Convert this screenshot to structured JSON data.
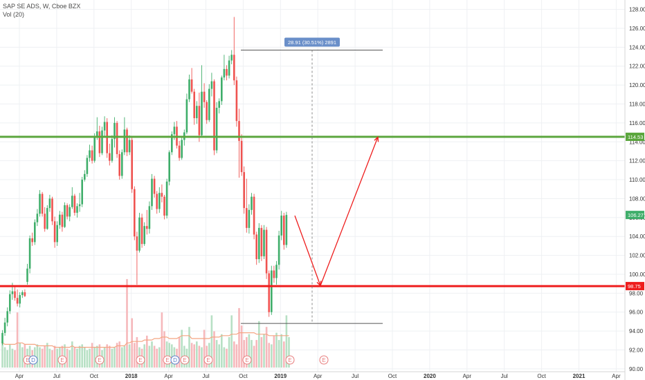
{
  "header": {
    "symbol_line": "SAP SE ADS, W, Cboe BZX",
    "volume_line": "Vol (20)"
  },
  "colors": {
    "up": "#3fae6a",
    "down": "#ef5350",
    "volume_up": "#b7e0c4",
    "volume_down": "#f6b8bb",
    "volume_ma": "#f4a582",
    "resistance_line": "#5ba63d",
    "support_line": "#ee1c1c",
    "projection_arrow": "#ee1c1c",
    "measure_box": "#6a8fc9",
    "event_ring": "#e77b7b",
    "dividend_ring": "#5a7dc9"
  },
  "chart_data": {
    "type": "candlestick",
    "title": "SAP SE ADS, W, Cboe BZX",
    "ylim": [
      89.7,
      128.7
    ],
    "y_ticks": [
      "90.00",
      "92.00",
      "94.00",
      "96.00",
      "98.00",
      "100.00",
      "102.00",
      "104.00",
      "106.00",
      "108.00",
      "110.00",
      "112.00",
      "114.00",
      "116.00",
      "118.00",
      "120.00",
      "122.00",
      "124.00",
      "126.00",
      "128.00"
    ],
    "x_ticks": [
      "Apr",
      "Jul",
      "Oct",
      "2018",
      "Apr",
      "Jul",
      "Oct",
      "2019",
      "Apr",
      "Jul",
      "Oct",
      "2020",
      "Apr",
      "Jul",
      "Oct",
      "2021",
      "Apr"
    ],
    "price_labels": {
      "resistance": "114.53",
      "current": "106.27",
      "support": "98.75"
    },
    "levels": {
      "resistance": 114.53,
      "support": 98.75,
      "current": 106.27
    },
    "measure": {
      "label": "28.91 (30.51%) 2891",
      "from": 94.8,
      "to": 123.7
    },
    "projection": [
      {
        "t": 0,
        "price": 106.2
      },
      {
        "t": 1,
        "price": 98.8
      },
      {
        "t": 2,
        "price": 114.5
      }
    ],
    "ohlc": [
      [
        92.7,
        94.1,
        92.5,
        93.8
      ],
      [
        93.8,
        95.4,
        93.5,
        94.9
      ],
      [
        94.9,
        96.5,
        94.5,
        96.1
      ],
      [
        96.1,
        98.3,
        95.8,
        97.9
      ],
      [
        97.9,
        99.1,
        97.3,
        98.2
      ],
      [
        98.2,
        98.8,
        97.2,
        97.5
      ],
      [
        97.5,
        98.4,
        96.6,
        96.9
      ],
      [
        96.9,
        98.1,
        96.5,
        97.8
      ],
      [
        97.8,
        98.3,
        97.5,
        98.1
      ],
      [
        98.1,
        98.4,
        97.6,
        97.7
      ],
      [
        99.2,
        101.1,
        98.9,
        100.6
      ],
      [
        100.6,
        104.1,
        100.1,
        103.8
      ],
      [
        103.8,
        104.4,
        103.0,
        103.4
      ],
      [
        103.4,
        105.8,
        103.1,
        105.5
      ],
      [
        105.5,
        106.9,
        105.1,
        106.4
      ],
      [
        106.4,
        108.9,
        106.1,
        108.5
      ],
      [
        108.5,
        108.7,
        106.1,
        106.4
      ],
      [
        106.4,
        107.1,
        104.5,
        104.8
      ],
      [
        104.8,
        107.3,
        104.7,
        107.0
      ],
      [
        107.0,
        108.4,
        106.6,
        108.0
      ],
      [
        108.0,
        108.2,
        105.2,
        105.6
      ],
      [
        105.6,
        106.1,
        102.8,
        103.4
      ],
      [
        103.4,
        105.6,
        103.0,
        105.2
      ],
      [
        105.2,
        106.7,
        104.8,
        106.3
      ],
      [
        106.3,
        106.6,
        104.5,
        105.0
      ],
      [
        105.0,
        107.6,
        104.9,
        107.3
      ],
      [
        107.3,
        107.5,
        105.8,
        106.1
      ],
      [
        106.1,
        107.4,
        105.6,
        107.1
      ],
      [
        107.1,
        109.2,
        106.9,
        108.3
      ],
      [
        108.3,
        108.5,
        106.2,
        106.5
      ],
      [
        106.5,
        107.5,
        106.0,
        107.2
      ],
      [
        107.2,
        108.6,
        106.6,
        107.4
      ],
      [
        107.4,
        110.3,
        107.1,
        110.0
      ],
      [
        110.0,
        111.0,
        109.8,
        110.6
      ],
      [
        110.6,
        112.6,
        110.3,
        112.3
      ],
      [
        112.3,
        113.7,
        111.9,
        113.1
      ],
      [
        113.1,
        113.6,
        111.7,
        112.0
      ],
      [
        112.0,
        114.9,
        111.8,
        114.5
      ],
      [
        114.5,
        116.6,
        114.2,
        115.1
      ],
      [
        115.1,
        115.7,
        112.4,
        112.8
      ],
      [
        112.8,
        115.6,
        112.6,
        115.2
      ],
      [
        115.2,
        116.7,
        114.5,
        116.1
      ],
      [
        116.1,
        116.5,
        112.3,
        112.8
      ],
      [
        112.8,
        113.8,
        111.5,
        112.0
      ],
      [
        112.0,
        114.7,
        111.8,
        114.3
      ],
      [
        114.3,
        116.6,
        113.4,
        116.0
      ],
      [
        116.0,
        116.2,
        112.3,
        112.7
      ],
      [
        112.7,
        113.1,
        110.0,
        110.4
      ],
      [
        110.4,
        113.2,
        110.1,
        112.9
      ],
      [
        112.9,
        116.6,
        112.6,
        115.3
      ],
      [
        115.3,
        115.5,
        112.5,
        112.9
      ],
      [
        112.9,
        114.7,
        112.6,
        114.2
      ],
      [
        114.2,
        114.5,
        108.6,
        109.0
      ],
      [
        109.0,
        109.3,
        103.6,
        104.0
      ],
      [
        104.0,
        104.5,
        98.9,
        102.5
      ],
      [
        102.5,
        106.5,
        102.3,
        106.0
      ],
      [
        106.0,
        106.4,
        102.8,
        103.2
      ],
      [
        103.2,
        105.5,
        103.0,
        105.1
      ],
      [
        105.1,
        106.8,
        104.2,
        104.8
      ],
      [
        104.8,
        107.7,
        104.3,
        107.2
      ],
      [
        107.2,
        110.6,
        106.8,
        110.1
      ],
      [
        110.1,
        110.4,
        108.1,
        108.5
      ],
      [
        108.5,
        108.8,
        106.4,
        106.9
      ],
      [
        106.9,
        109.2,
        106.5,
        108.6
      ],
      [
        108.6,
        109.5,
        107.6,
        108.2
      ],
      [
        108.2,
        108.4,
        105.8,
        106.2
      ],
      [
        106.2,
        110.1,
        105.9,
        109.8
      ],
      [
        109.8,
        113.1,
        109.4,
        112.9
      ],
      [
        112.9,
        115.1,
        112.6,
        114.8
      ],
      [
        114.8,
        116.1,
        114.2,
        115.6
      ],
      [
        115.6,
        116.2,
        113.3,
        113.6
      ],
      [
        113.6,
        114.1,
        112.0,
        112.3
      ],
      [
        112.3,
        114.6,
        112.1,
        114.2
      ],
      [
        114.2,
        115.3,
        113.6,
        115.0
      ],
      [
        115.0,
        119.1,
        114.8,
        118.5
      ],
      [
        118.5,
        121.1,
        118.2,
        120.6
      ],
      [
        120.6,
        121.8,
        119.1,
        119.3
      ],
      [
        119.3,
        119.6,
        115.8,
        116.5
      ],
      [
        116.5,
        118.3,
        115.9,
        117.8
      ],
      [
        117.8,
        119.2,
        114.0,
        114.7
      ],
      [
        114.7,
        122.1,
        114.5,
        119.3
      ],
      [
        119.3,
        120.2,
        117.6,
        118.2
      ],
      [
        118.2,
        118.4,
        115.9,
        116.3
      ],
      [
        116.3,
        120.1,
        116.1,
        119.6
      ],
      [
        119.6,
        121.3,
        118.8,
        120.4
      ],
      [
        120.4,
        120.6,
        112.6,
        113.1
      ],
      [
        113.1,
        118.2,
        112.8,
        117.6
      ],
      [
        117.6,
        118.6,
        117.0,
        118.3
      ],
      [
        118.3,
        121.0,
        117.9,
        120.8
      ],
      [
        120.8,
        123.2,
        120.5,
        121.7
      ],
      [
        121.7,
        122.1,
        120.5,
        121.0
      ],
      [
        121.0,
        123.1,
        120.7,
        122.6
      ],
      [
        122.6,
        123.7,
        122.2,
        123.2
      ],
      [
        123.2,
        127.2,
        120.0,
        120.5
      ],
      [
        120.5,
        120.9,
        115.6,
        116.2
      ],
      [
        116.2,
        117.5,
        110.2,
        114.1
      ],
      [
        114.1,
        114.8,
        110.4,
        110.8
      ],
      [
        110.8,
        111.4,
        106.4,
        107.0
      ],
      [
        107.0,
        110.1,
        104.4,
        104.9
      ],
      [
        104.9,
        107.4,
        104.3,
        106.8
      ],
      [
        106.8,
        108.6,
        106.3,
        108.2
      ],
      [
        108.2,
        108.5,
        103.7,
        104.2
      ],
      [
        104.2,
        104.5,
        101.0,
        101.6
      ],
      [
        101.6,
        105.4,
        101.2,
        104.9
      ],
      [
        104.9,
        105.2,
        101.4,
        101.9
      ],
      [
        101.9,
        105.2,
        101.6,
        104.7
      ],
      [
        104.7,
        105.0,
        99.5,
        100.1
      ],
      [
        100.1,
        100.4,
        95.5,
        96.0
      ],
      [
        96.0,
        100.9,
        95.7,
        100.4
      ],
      [
        100.4,
        100.9,
        99.1,
        99.6
      ],
      [
        99.6,
        101.4,
        98.9,
        101.0
      ],
      [
        101.0,
        104.6,
        100.5,
        104.1
      ],
      [
        104.1,
        106.7,
        103.6,
        106.2
      ],
      [
        106.2,
        106.5,
        102.6,
        103.1
      ],
      [
        103.1,
        106.6,
        102.8,
        106.27
      ]
    ],
    "volume": [
      1.8,
      1.4,
      1.2,
      1.6,
      1.3,
      1.2,
      3.8,
      1.7,
      1.4,
      1.6,
      1.3,
      1.5,
      1.2,
      1.4,
      1.6,
      1.4,
      1.3,
      1.5,
      1.7,
      1.3,
      1.2,
      1.5,
      1.3,
      1.4,
      1.5,
      1.6,
      1.3,
      1.2,
      1.8,
      1.4,
      1.3,
      1.5,
      1.6,
      1.4,
      1.2,
      1.3,
      1.7,
      1.4,
      1.5,
      1.6,
      1.2,
      1.4,
      1.6,
      1.5,
      1.3,
      1.4,
      1.7,
      1.8,
      1.4,
      1.5,
      6.1,
      1.6,
      3.4,
      1.7,
      2.1,
      1.4,
      1.3,
      1.6,
      2.2,
      1.5,
      1.8,
      1.5,
      1.3,
      1.4,
      3.8,
      2.5,
      1.8,
      1.7,
      1.6,
      1.4,
      1.3,
      2.1,
      2.6,
      1.5,
      1.3,
      2.8,
      1.7,
      1.6,
      1.8,
      1.5,
      1.4,
      2.6,
      1.5,
      1.7,
      3.6,
      2.5,
      1.9,
      1.6,
      2.3,
      1.4,
      1.3,
      2.1,
      3.6,
      1.8,
      1.6,
      4.1,
      2.9,
      1.9,
      2.1,
      2.3,
      1.9,
      1.5,
      1.9,
      3.2,
      2.1,
      2.3,
      2.8,
      1.7,
      1.6,
      2.2,
      2.4,
      1.9,
      2.3,
      1.8,
      3.6,
      2.1
    ],
    "volume_ma": [
      1.7,
      1.6,
      1.6,
      1.6,
      1.6,
      1.6,
      1.7,
      1.7,
      1.7,
      1.6,
      1.6,
      1.6,
      1.6,
      1.6,
      1.5,
      1.5,
      1.5,
      1.5,
      1.5,
      1.5,
      1.5,
      1.4,
      1.4,
      1.4,
      1.4,
      1.4,
      1.4,
      1.4,
      1.5,
      1.4,
      1.4,
      1.4,
      1.4,
      1.4,
      1.4,
      1.4,
      1.4,
      1.4,
      1.4,
      1.4,
      1.4,
      1.4,
      1.4,
      1.4,
      1.4,
      1.4,
      1.5,
      1.5,
      1.5,
      1.5,
      1.7,
      1.7,
      1.8,
      1.8,
      1.8,
      1.8,
      1.8,
      1.9,
      1.9,
      1.9,
      1.9,
      2.0,
      2.0,
      2.0,
      2.1,
      2.1,
      2.1,
      2.0,
      2.0,
      2.0,
      2.0,
      2.1,
      2.2,
      2.2,
      2.2,
      2.2,
      2.0,
      2.0,
      2.0,
      2.0,
      2.0,
      2.0,
      2.0,
      2.0,
      2.1,
      2.1,
      2.1,
      2.1,
      2.2,
      2.2,
      2.2,
      2.2,
      2.3,
      2.3,
      2.3,
      2.4,
      2.4,
      2.4,
      2.4,
      2.4,
      2.4,
      2.4,
      2.3,
      2.3,
      2.3,
      2.3,
      2.3,
      2.2,
      2.2,
      2.2,
      2.2,
      2.2,
      2.2,
      2.2,
      2.2,
      2.2
    ],
    "events": [
      {
        "type": "E",
        "week": 8
      },
      {
        "type": "D",
        "week": 10
      },
      {
        "type": "E",
        "week": 19
      },
      {
        "type": "E",
        "week": 29
      },
      {
        "type": "E",
        "week": 40
      },
      {
        "type": "E",
        "week": 46
      },
      {
        "type": "D",
        "week": 50
      },
      {
        "type": "E",
        "week": 52
      },
      {
        "type": "E",
        "week": 59
      },
      {
        "type": "E",
        "week": 70
      },
      {
        "type": "E",
        "week": 80
      },
      {
        "type": "E",
        "week": 90
      }
    ]
  }
}
